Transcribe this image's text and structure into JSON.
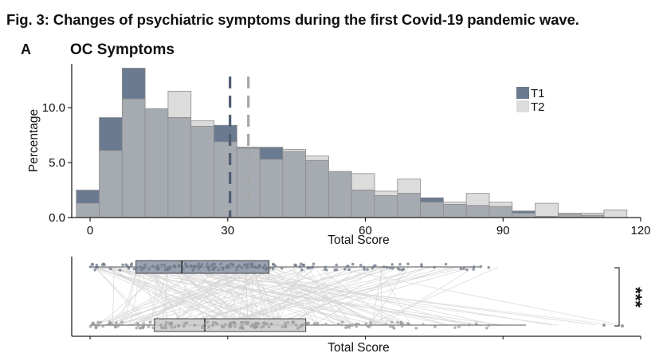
{
  "figure_title": "Fig. 3: Changes of psychiatric symptoms during the first Covid-19 pandemic wave.",
  "panel_label": "A",
  "panel_title": "OC Symptoms",
  "colors": {
    "t1": "#6a7a90",
    "t2": "#dcdcdc",
    "overlap": "#a6abb1",
    "edge": "#8c8c8c",
    "mean_t1": "#4f5d72",
    "mean_t2": "#a7a7a7",
    "link": "#d7d7d7"
  },
  "chart_data": [
    {
      "type": "histogram",
      "xlabel": "Total Score",
      "ylabel": "Percentage",
      "xlim": [
        -4,
        120
      ],
      "ylim": [
        0,
        14
      ],
      "x_ticks": [
        0,
        30,
        60,
        90,
        120
      ],
      "y_ticks": [
        0.0,
        5.0,
        10.0
      ],
      "y_tick_labels": [
        "0.0",
        "5.0",
        "10.0"
      ],
      "bin_width": 5,
      "bin_starts": [
        -3,
        2,
        7,
        12,
        17,
        22,
        27,
        32,
        37,
        42,
        47,
        52,
        57,
        62,
        67,
        72,
        77,
        82,
        87,
        92,
        97,
        102,
        107,
        112
      ],
      "series": [
        {
          "name": "T1",
          "values": [
            2.5,
            9.1,
            13.6,
            9.9,
            9.1,
            8.3,
            8.4,
            6.4,
            6.4,
            6.0,
            5.2,
            4.2,
            2.5,
            2.0,
            2.2,
            1.8,
            1.2,
            1.1,
            1.0,
            0.6,
            0.1,
            0.3,
            0.2,
            0.0
          ]
        },
        {
          "name": "T2",
          "values": [
            1.3,
            6.1,
            10.8,
            9.9,
            11.5,
            8.8,
            6.9,
            6.3,
            5.3,
            6.2,
            5.6,
            4.2,
            4.0,
            2.4,
            3.5,
            1.4,
            1.4,
            2.2,
            1.4,
            0.4,
            1.3,
            0.4,
            0.4,
            0.7
          ]
        }
      ],
      "means": [
        {
          "name": "T1",
          "value": 30.5
        },
        {
          "name": "T2",
          "value": 34.5
        }
      ],
      "legend": [
        "T1",
        "T2"
      ],
      "legend_position": "top-right"
    },
    {
      "type": "paired-boxplot",
      "xlabel": "Total Score",
      "xlim": [
        -4,
        120
      ],
      "significance": "***",
      "boxes": [
        {
          "name": "T1",
          "min": 0,
          "q1": 10,
          "median": 20,
          "q3": 39,
          "max": 85
        },
        {
          "name": "T2",
          "min": 0,
          "q1": 14,
          "median": 25,
          "q3": 47,
          "max": 95
        }
      ]
    }
  ]
}
